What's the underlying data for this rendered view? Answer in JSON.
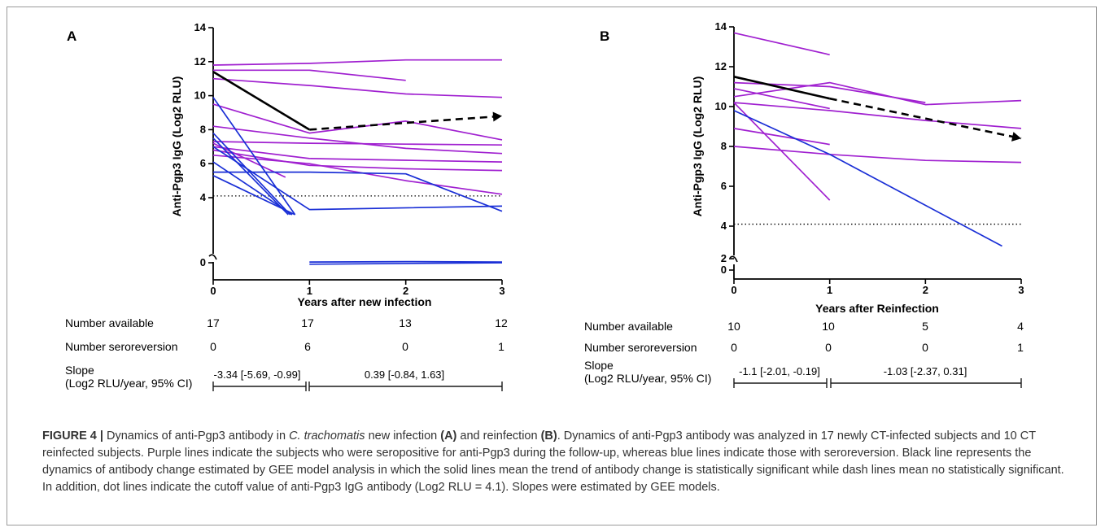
{
  "panels": [
    {
      "letter": "A",
      "ylabel": "Anti-Pgp3 IgG (Log2 RLU)",
      "xlabel": "Years after new infection",
      "yticks": [
        "0",
        "4",
        "6",
        "8",
        "10",
        "12",
        "14"
      ],
      "xticks": [
        "0",
        "1",
        "2",
        "3"
      ],
      "table": {
        "available_label": "Number available",
        "available": [
          "17",
          "17",
          "13",
          "12"
        ],
        "serorev_label": "Number seroreversion",
        "serorev": [
          "0",
          "6",
          "0",
          "1"
        ],
        "slope_label_1": "Slope",
        "slope_label_2": "(Log2 RLU/year, 95% CI)",
        "slope1": "-3.34 [-5.69, -0.99]",
        "slope2": "0.39 [-0.84, 1.63]"
      }
    },
    {
      "letter": "B",
      "ylabel": "Anti-Pgp3 IgG (Log2 RLU)",
      "xlabel": "Years after Reinfection",
      "yticks": [
        "0",
        "2",
        "4",
        "6",
        "8",
        "10",
        "12",
        "14"
      ],
      "xticks": [
        "0",
        "1",
        "2",
        "3"
      ],
      "table": {
        "available_label": "Number available",
        "available": [
          "10",
          "10",
          "5",
          "4"
        ],
        "serorev_label": "Number seroreversion",
        "serorev": [
          "0",
          "0",
          "0",
          "1"
        ],
        "slope_label_1": "Slope",
        "slope_label_2": "(Log2 RLU/year, 95% CI)",
        "slope1": "-1.1 [-2.01, -0.19]",
        "slope2": "-1.03 [-2.37, 0.31]"
      }
    }
  ],
  "colors": {
    "seropositive": "#a020d0",
    "seroreversion": "#1a2fd6",
    "model": "#000000"
  },
  "caption": {
    "figure_label": "FIGURE 4 |",
    "seg1": " Dynamics of anti-Pgp3 antibody in ",
    "species": "C. trachomatis",
    "seg2": " new infection ",
    "ref_a": "(A)",
    "seg3": " and reinfection ",
    "ref_b": "(B)",
    "seg4": ". Dynamics of anti-Pgp3 antibody was analyzed in 17 newly CT-infected subjects and 10 CT reinfected subjects. Purple lines indicate the subjects who were seropositive for anti-Pgp3 during the follow-up, whereas blue lines indicate those with seroreversion. Black line represents the dynamics of antibody change estimated by GEE model analysis in which the solid lines mean the trend of antibody change is statistically significant while dash lines mean no statistically significant. In addition, dot lines indicate the cutoff value of anti-Pgp3 IgG antibody (Log2 RLU = 4.1). Slopes were estimated by GEE models."
  },
  "chart_data": [
    {
      "type": "line",
      "panel": "A",
      "ylabel": "Anti-Pgp3 IgG (Log2 RLU)",
      "xlabel": "Years after new infection",
      "xlim": [
        0,
        3
      ],
      "ylim": [
        0,
        14
      ],
      "axis_break": [
        0.5,
        3
      ],
      "cutoff": 4.1,
      "series": [
        {
          "group": "seropositive",
          "x": [
            0,
            1,
            2,
            3
          ],
          "y": [
            11.8,
            11.9,
            12.1,
            12.1
          ]
        },
        {
          "group": "seropositive",
          "x": [
            0,
            1,
            2
          ],
          "y": [
            11.5,
            11.5,
            10.9
          ]
        },
        {
          "group": "seropositive",
          "x": [
            0,
            1,
            2,
            3
          ],
          "y": [
            11.0,
            10.6,
            10.1,
            9.9
          ]
        },
        {
          "group": "seropositive",
          "x": [
            0,
            1,
            2,
            3
          ],
          "y": [
            9.5,
            7.8,
            8.5,
            7.4
          ]
        },
        {
          "group": "seropositive",
          "x": [
            0,
            1,
            2,
            3
          ],
          "y": [
            8.2,
            7.5,
            6.9,
            6.6
          ]
        },
        {
          "group": "seropositive",
          "x": [
            0,
            1,
            2,
            3
          ],
          "y": [
            7.3,
            7.2,
            7.15,
            7.1
          ]
        },
        {
          "group": "seropositive",
          "x": [
            0,
            1,
            2,
            3
          ],
          "y": [
            7.0,
            6.3,
            6.2,
            6.1
          ]
        },
        {
          "group": "seropositive",
          "x": [
            0,
            1,
            2,
            3
          ],
          "y": [
            6.8,
            5.9,
            5.7,
            5.6
          ]
        },
        {
          "group": "seropositive",
          "x": [
            0,
            1,
            2,
            3
          ],
          "y": [
            6.5,
            6.0,
            5.0,
            4.2
          ]
        },
        {
          "group": "seropositive",
          "x": [
            0,
            0.75
          ],
          "y": [
            7.2,
            5.2
          ]
        },
        {
          "group": "seroreversion",
          "x": [
            0,
            0.85
          ],
          "y": [
            9.9,
            3.0
          ]
        },
        {
          "group": "seroreversion",
          "x": [
            0,
            0.8
          ],
          "y": [
            7.8,
            3.0
          ]
        },
        {
          "group": "seroreversion",
          "x": [
            0,
            0.78
          ],
          "y": [
            7.5,
            3.0
          ]
        },
        {
          "group": "seroreversion",
          "x": [
            0,
            0.82
          ],
          "y": [
            6.1,
            3.0
          ]
        },
        {
          "group": "seroreversion",
          "x": [
            0,
            1,
            3
          ],
          "y": [
            7.0,
            3.3,
            3.5
          ]
        },
        {
          "group": "seroreversion",
          "x": [
            0,
            1,
            2,
            3
          ],
          "y": [
            5.5,
            5.5,
            5.4,
            3.2
          ]
        },
        {
          "group": "seroreversion",
          "x": [
            0,
            0.85
          ],
          "y": [
            5.3,
            3.0
          ]
        },
        {
          "group": "seroreversion",
          "x": [
            1,
            2,
            3
          ],
          "y": [
            0.1,
            0.15,
            0.1
          ]
        },
        {
          "group": "seroreversion",
          "x": [
            1,
            3
          ],
          "y": [
            -0.2,
            0.0
          ]
        },
        {
          "group": "model",
          "style": "solid",
          "x": [
            0,
            1
          ],
          "y": [
            11.4,
            8.0
          ]
        },
        {
          "group": "model",
          "style": "dashed",
          "x": [
            1,
            3
          ],
          "y": [
            8.0,
            8.8
          ]
        }
      ]
    },
    {
      "type": "line",
      "panel": "B",
      "ylabel": "Anti-Pgp3 IgG (Log2 RLU)",
      "xlabel": "Years after Reinfection",
      "xlim": [
        0,
        3
      ],
      "ylim": [
        0,
        14
      ],
      "axis_break": [
        2.3,
        3
      ],
      "cutoff": 4.1,
      "series": [
        {
          "group": "seropositive",
          "x": [
            0,
            1
          ],
          "y": [
            13.7,
            12.6
          ]
        },
        {
          "group": "seropositive",
          "x": [
            0,
            1,
            2
          ],
          "y": [
            11.2,
            11.0,
            10.2
          ]
        },
        {
          "group": "seropositive",
          "x": [
            0,
            1,
            2,
            3
          ],
          "y": [
            10.5,
            11.2,
            10.1,
            10.3
          ]
        },
        {
          "group": "seropositive",
          "x": [
            0,
            1
          ],
          "y": [
            10.9,
            9.9
          ]
        },
        {
          "group": "seropositive",
          "x": [
            0,
            1,
            2,
            3
          ],
          "y": [
            10.2,
            9.8,
            9.3,
            8.9
          ]
        },
        {
          "group": "seropositive",
          "x": [
            0,
            1
          ],
          "y": [
            10.2,
            5.3
          ]
        },
        {
          "group": "seropositive",
          "x": [
            0,
            1
          ],
          "y": [
            8.9,
            8.1
          ]
        },
        {
          "group": "seropositive",
          "x": [
            0,
            1,
            2,
            3
          ],
          "y": [
            8.0,
            7.6,
            7.3,
            7.2
          ]
        },
        {
          "group": "seroreversion",
          "x": [
            0,
            1,
            2.8
          ],
          "y": [
            9.8,
            7.6,
            3.0
          ]
        },
        {
          "group": "model",
          "style": "solid",
          "x": [
            0,
            1
          ],
          "y": [
            11.5,
            10.4
          ]
        },
        {
          "group": "model",
          "style": "dashed",
          "x": [
            1,
            3
          ],
          "y": [
            10.4,
            8.4
          ]
        }
      ]
    }
  ]
}
